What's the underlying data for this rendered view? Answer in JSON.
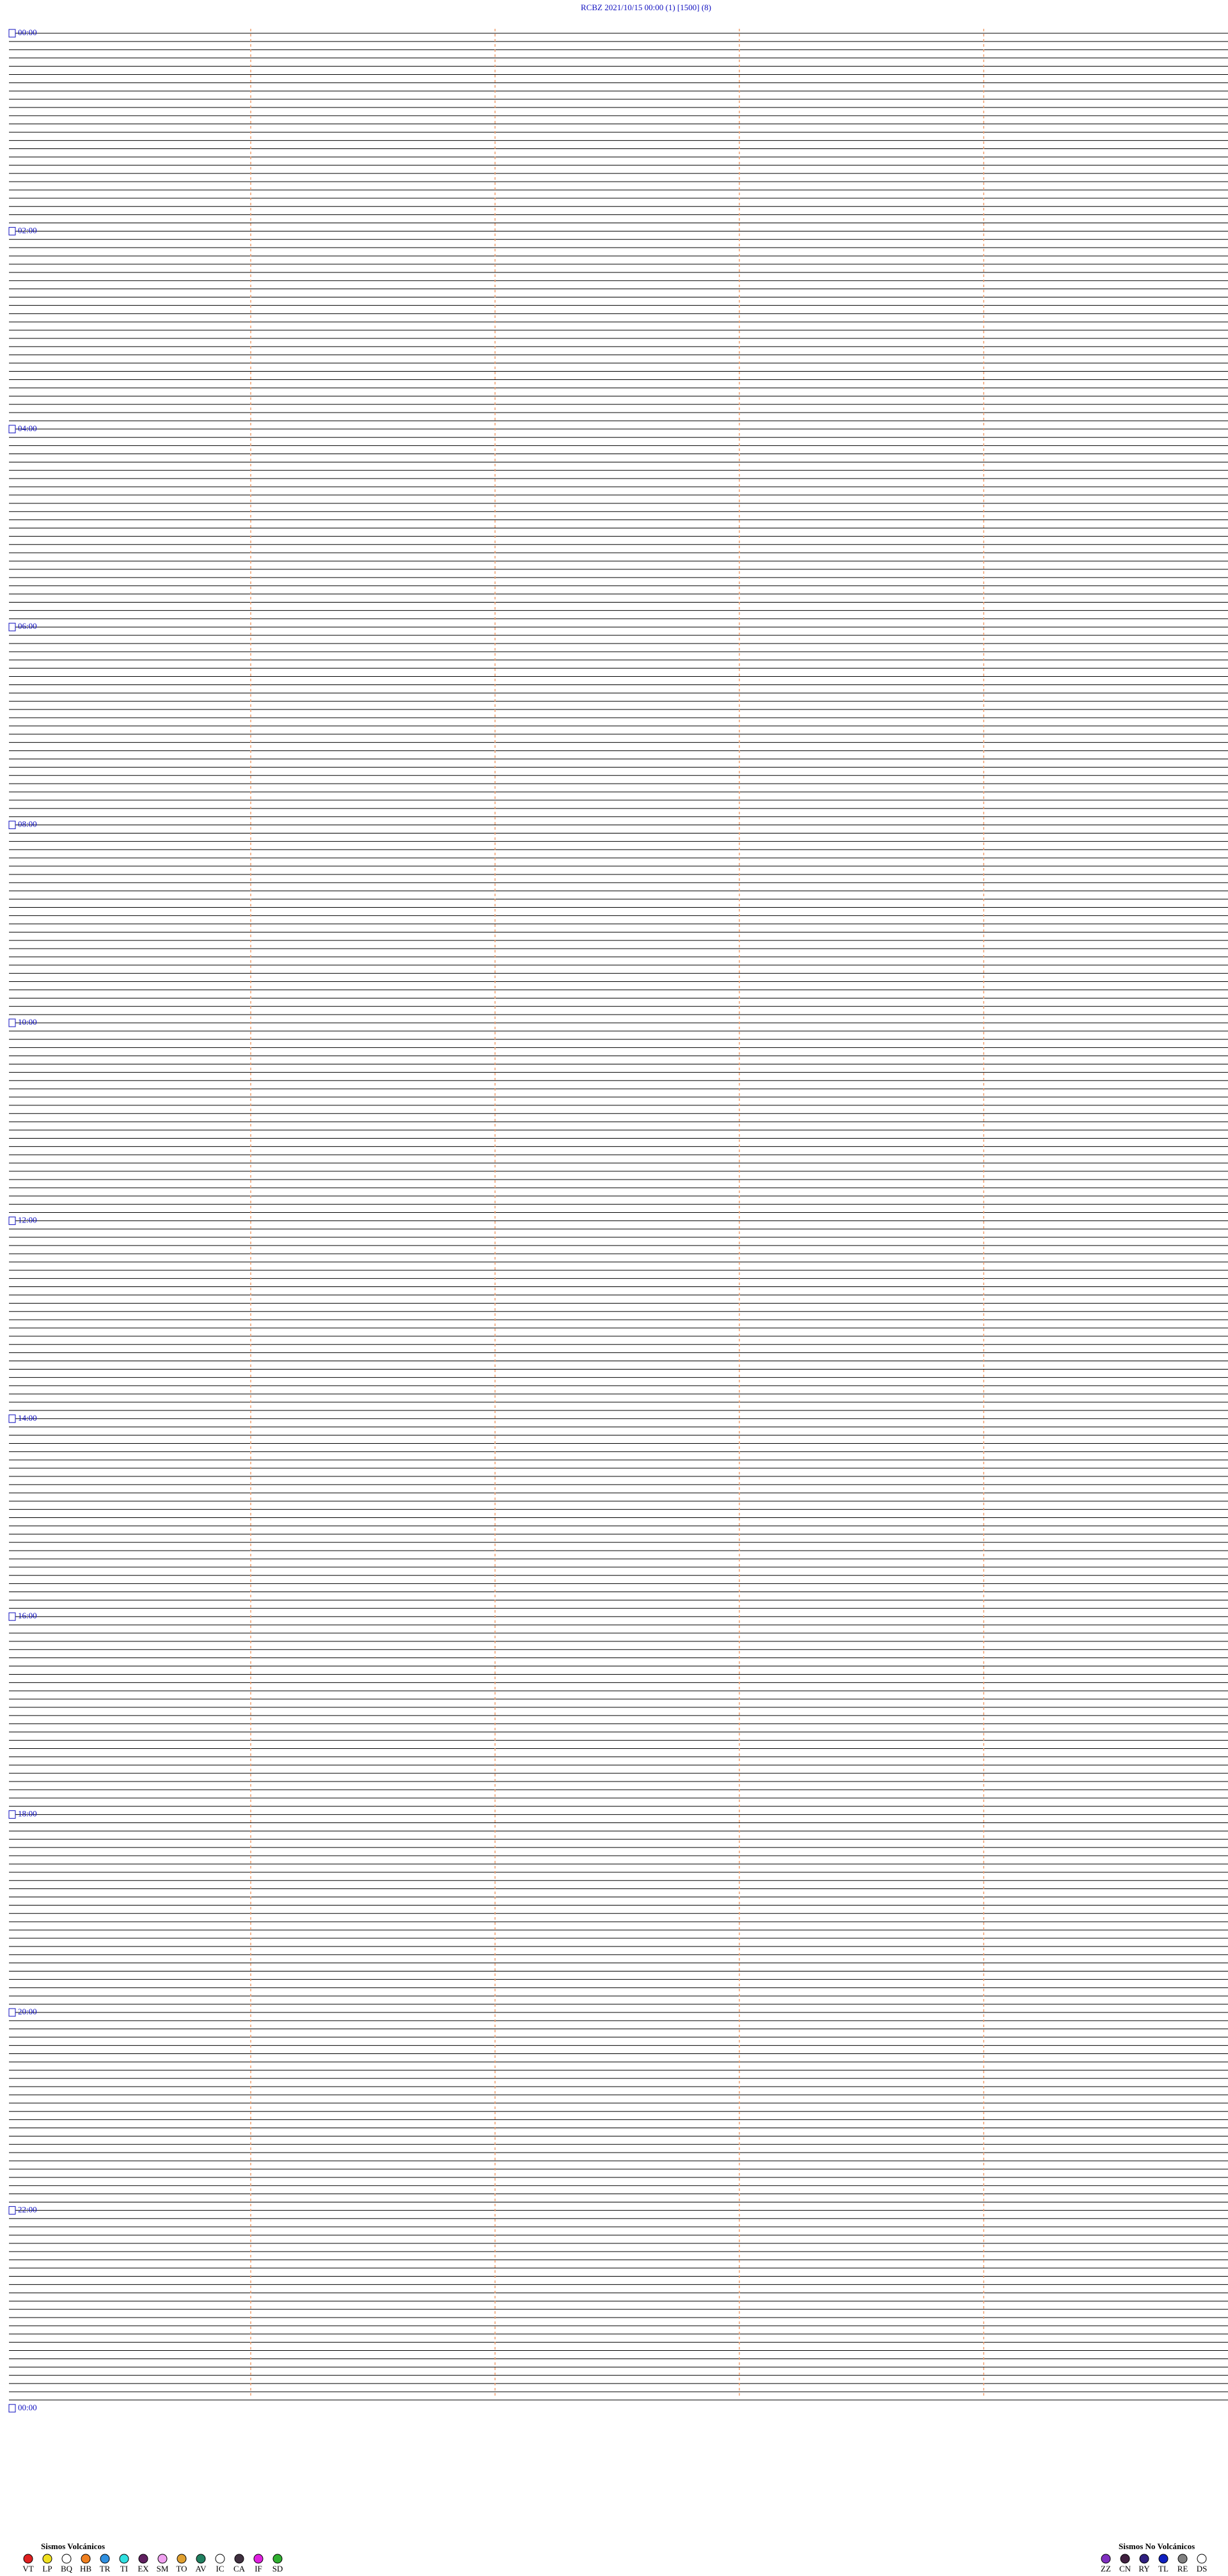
{
  "header": {
    "title": "RCBZ    2021/10/15 00:00    (1)    [1500]    (8)"
  },
  "time_labels": [
    "00:00",
    "02:00",
    "04:00",
    "06:00",
    "08:00",
    "10:00",
    "12:00",
    "14:00",
    "16:00",
    "18:00",
    "20:00",
    "22:00",
    "00:00"
  ],
  "legends": [
    {
      "title": "Sismos Volcánicos",
      "items": [
        {
          "code": "VT",
          "color": "#e02020"
        },
        {
          "code": "LP",
          "color": "#f0e020"
        },
        {
          "code": "BQ",
          "color": "#ffffff"
        },
        {
          "code": "HB",
          "color": "#f08020"
        },
        {
          "code": "TR",
          "color": "#3090e0"
        },
        {
          "code": "TI",
          "color": "#30e0e0"
        },
        {
          "code": "EX",
          "color": "#602060"
        },
        {
          "code": "SM",
          "color": "#f0a0f0"
        },
        {
          "code": "TO",
          "color": "#e0a030"
        },
        {
          "code": "AV",
          "color": "#208060"
        },
        {
          "code": "IC",
          "color": "#ffffff"
        },
        {
          "code": "CA",
          "color": "#403040"
        },
        {
          "code": "IF",
          "color": "#e020e0"
        },
        {
          "code": "SD",
          "color": "#30b030"
        }
      ]
    },
    {
      "title": "Sismos No Volcánicos",
      "items": [
        {
          "code": "ZZ",
          "color": "#8030c0"
        },
        {
          "code": "CN",
          "color": "#402040"
        },
        {
          "code": "RY",
          "color": "#302080"
        },
        {
          "code": "TL",
          "color": "#1020c0"
        },
        {
          "code": "RE",
          "color": "#808080"
        },
        {
          "code": "DS",
          "color": "#ffffff"
        }
      ]
    }
  ]
}
